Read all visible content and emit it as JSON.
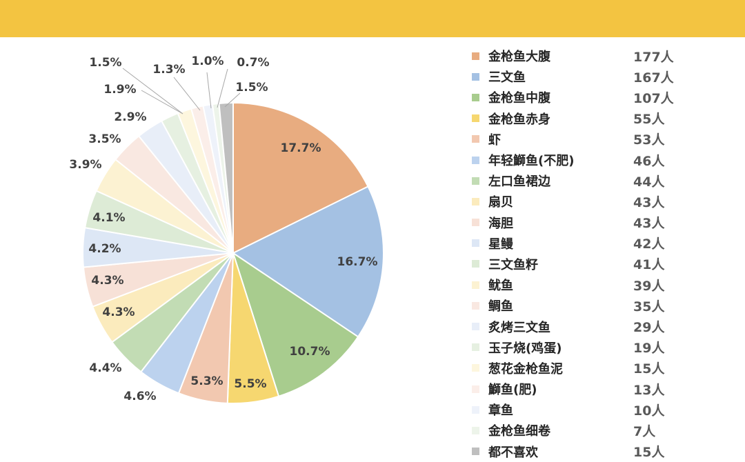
{
  "chart_data": {
    "type": "pie",
    "unit": "人",
    "categories": [
      "金枪鱼大腹",
      "三文鱼",
      "金枪鱼中腹",
      "金枪鱼赤身",
      "虾",
      "年轻鰤鱼(不肥)",
      "左口鱼裙边",
      "扇贝",
      "海胆",
      "星鳗",
      "三文鱼籽",
      "鱿鱼",
      "鲷鱼",
      "炙烤三文鱼",
      "玉子烧(鸡蛋)",
      "葱花金枪鱼泥",
      "鰤鱼(肥)",
      "章鱼",
      "金枪鱼细卷",
      "都不喜欢"
    ],
    "values": [
      177,
      167,
      107,
      55,
      53,
      46,
      44,
      43,
      43,
      42,
      41,
      39,
      35,
      29,
      19,
      15,
      13,
      10,
      7,
      15
    ],
    "counts": [
      "177人",
      "167人",
      "107人",
      "55人",
      "53人",
      "46人",
      "44人",
      "43人",
      "43人",
      "42人",
      "41人",
      "39人",
      "35人",
      "29人",
      "19人",
      "15人",
      "13人",
      "10人",
      "7人",
      "15人"
    ],
    "percent_labels": [
      "17.7%",
      "16.7%",
      "10.7%",
      "5.5%",
      "5.3%",
      "4.6%",
      "4.4%",
      "4.3%",
      "4.3%",
      "4.2%",
      "4.1%",
      "3.9%",
      "3.5%",
      "2.9%",
      "1.9%",
      "1.5%",
      "1.3%",
      "1.0%",
      "0.7%",
      "1.5%"
    ],
    "colors": [
      "#e8ac80",
      "#a4c1e3",
      "#a8cc8e",
      "#f6d770",
      "#f2c8b0",
      "#bcd2ee",
      "#c2dcb4",
      "#fbebbd",
      "#f7e1d7",
      "#dde7f5",
      "#ddebd6",
      "#fcf2d2",
      "#f9e8e1",
      "#e8eef8",
      "#e6f0e1",
      "#fdf6de",
      "#fbeee9",
      "#eef2fa",
      "#edf4ea",
      "#bfbfbf"
    ],
    "legend_position": "right"
  }
}
